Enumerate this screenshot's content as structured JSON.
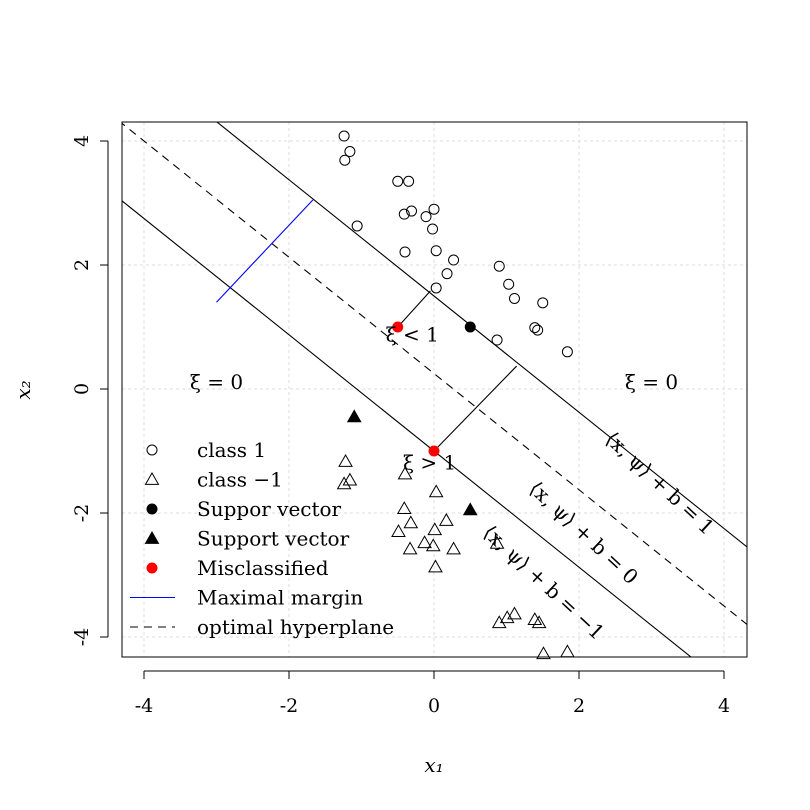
{
  "chart_data": {
    "type": "scatter",
    "title": "",
    "xlabel": "x₁",
    "ylabel": "x₂",
    "xlim": [
      -4.3,
      4.3
    ],
    "ylim": [
      -4.3,
      4.3
    ],
    "xticks": [
      -4,
      -2,
      0,
      2,
      4
    ],
    "yticks": [
      -4,
      -2,
      0,
      2,
      4
    ],
    "xtick_labels": [
      "-4",
      "-2",
      "0",
      "2",
      "4"
    ],
    "ytick_labels": [
      "-4",
      "-2",
      "0",
      "2",
      "4"
    ],
    "grid": true,
    "series": [
      {
        "name": "class 1",
        "marker": "open-circle",
        "color": "#000000",
        "points": [
          [
            -1.24,
            4.08
          ],
          [
            -1.16,
            3.83
          ],
          [
            -1.23,
            3.69
          ],
          [
            -0.5,
            3.35
          ],
          [
            -0.35,
            3.35
          ],
          [
            -0.41,
            2.82
          ],
          [
            -0.31,
            2.87
          ],
          [
            0.0,
            2.9
          ],
          [
            -0.11,
            2.78
          ],
          [
            -1.06,
            2.63
          ],
          [
            -0.02,
            2.58
          ],
          [
            0.03,
            2.23
          ],
          [
            -0.4,
            2.21
          ],
          [
            0.27,
            2.08
          ],
          [
            0.18,
            1.86
          ],
          [
            0.9,
            1.98
          ],
          [
            1.03,
            1.69
          ],
          [
            1.11,
            1.46
          ],
          [
            1.5,
            1.39
          ],
          [
            0.03,
            1.63
          ],
          [
            1.39,
            0.99
          ],
          [
            1.43,
            0.95
          ],
          [
            0.87,
            0.79
          ],
          [
            1.84,
            0.6
          ]
        ]
      },
      {
        "name": "class −1",
        "marker": "open-triangle",
        "color": "#000000",
        "points": [
          [
            -1.22,
            -1.17
          ],
          [
            -1.16,
            -1.47
          ],
          [
            -1.24,
            -1.53
          ],
          [
            -0.4,
            -1.37
          ],
          [
            -0.41,
            -1.93
          ],
          [
            0.03,
            -1.66
          ],
          [
            -0.32,
            -2.16
          ],
          [
            0.17,
            -2.12
          ],
          [
            -0.49,
            -2.3
          ],
          [
            0.01,
            -2.27
          ],
          [
            -0.33,
            -2.58
          ],
          [
            -0.13,
            -2.48
          ],
          [
            -0.01,
            -2.53
          ],
          [
            0.27,
            -2.58
          ],
          [
            0.87,
            -2.49
          ],
          [
            0.02,
            -2.87
          ],
          [
            0.9,
            -3.77
          ],
          [
            1.01,
            -3.69
          ],
          [
            1.11,
            -3.63
          ],
          [
            1.39,
            -3.72
          ],
          [
            1.45,
            -3.77
          ],
          [
            1.51,
            -4.27
          ],
          [
            1.84,
            -4.24
          ]
        ]
      },
      {
        "name": "Suppor vector",
        "marker": "filled-circle",
        "color": "#000000",
        "points": [
          [
            0.5,
            1.0
          ]
        ]
      },
      {
        "name": "Support vector",
        "marker": "filled-triangle",
        "color": "#000000",
        "points": [
          [
            -1.1,
            -0.45
          ],
          [
            0.5,
            -1.95
          ]
        ]
      },
      {
        "name": "Misclassified",
        "marker": "filled-circle",
        "color": "#ff0000",
        "points": [
          [
            -0.5,
            1.0
          ],
          [
            0.0,
            -1.0
          ]
        ]
      }
    ],
    "lines": [
      {
        "name": "optimal hyperplane",
        "style": "dashed",
        "color": "#000000",
        "slope": -0.9375,
        "intercept": 0.25
      },
      {
        "name": "margin +1",
        "style": "solid",
        "color": "#000000",
        "slope": -0.9375,
        "intercept": 1.5
      },
      {
        "name": "margin -1",
        "style": "solid",
        "color": "#000000",
        "slope": -0.9375,
        "intercept": -1.0
      }
    ],
    "segments": [
      {
        "name": "Maximal margin",
        "color": "#0000ff",
        "from": [
          -3.0,
          1.4
        ],
        "to": [
          -1.67,
          3.05
        ]
      },
      {
        "name": "slack-small",
        "color": "#000000",
        "from": [
          -0.5,
          1.0
        ],
        "to": [
          -0.05,
          1.58
        ]
      },
      {
        "name": "slack-large",
        "color": "#000000",
        "from": [
          0.0,
          -1.0
        ],
        "to": [
          1.14,
          0.37
        ]
      }
    ],
    "annotations": [
      {
        "text": "ξ = 0",
        "x": -3.0,
        "y": 0.0
      },
      {
        "text": "ξ = 0",
        "x": 3.0,
        "y": 0.0
      },
      {
        "text": "ξ < 1",
        "x": -0.3,
        "y": 0.77
      },
      {
        "text": "ξ > 1",
        "x": -0.06,
        "y": -1.3
      },
      {
        "text": "⟨x, ψ⟩ + b = 1",
        "x": 3.05,
        "y": -1.6,
        "angle": 43
      },
      {
        "text": "⟨x, ψ⟩ + b = 0",
        "x": 2.0,
        "y": -2.4,
        "angle": 43
      },
      {
        "text": "⟨x, ψ⟩ + b = −1",
        "x": 1.45,
        "y": -3.2,
        "angle": 43
      }
    ],
    "legend": {
      "position": "bottom-left",
      "entries": [
        {
          "label": "class 1",
          "symbol": "open-circle",
          "color": "#000000"
        },
        {
          "label": "class −1",
          "symbol": "open-triangle",
          "color": "#000000"
        },
        {
          "label": "Suppor vector",
          "symbol": "filled-circle",
          "color": "#000000"
        },
        {
          "label": "Support vector",
          "symbol": "filled-triangle",
          "color": "#000000"
        },
        {
          "label": "Misclassified",
          "symbol": "filled-circle",
          "color": "#ff0000"
        },
        {
          "label": "Maximal margin",
          "symbol": "line",
          "color": "#0000ff"
        },
        {
          "label": "optimal hyperplane",
          "symbol": "dashed-line",
          "color": "#000000"
        }
      ]
    }
  }
}
